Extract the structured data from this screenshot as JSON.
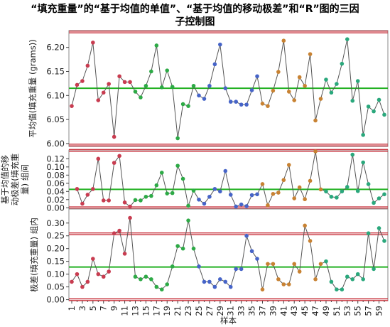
{
  "title_line1": "“填充重量”的“基于均值的单值”、“基于均值的移动极差”和“R”图的三因",
  "title_line2": "子控制图",
  "colors": {
    "center_line": "#22b122",
    "limit_line": "#c8323c",
    "connector": "#555555"
  },
  "series_colors": [
    "#c83c50",
    "#2daa46",
    "#4664c8",
    "#c88232",
    "#2aa87c"
  ],
  "chart_data": [
    {
      "type": "line",
      "name": "mean-panel",
      "ylabel": "平均值(填充重量 (grams))",
      "ylim": [
        5.994,
        6.235
      ],
      "yticks": [
        6.0,
        6.05,
        6.1,
        6.15,
        6.2
      ],
      "ytick_labels": [
        "6.00",
        "6.05",
        "6.10",
        "6.15",
        "6.20"
      ],
      "center_line": 6.115,
      "upper_limit": 6.232,
      "lower_limit": 5.997,
      "grid": false,
      "values": [
        6.078,
        6.122,
        6.13,
        6.162,
        6.21,
        6.09,
        6.106,
        6.124,
        6.014,
        6.14,
        6.128,
        6.128,
        6.108,
        6.096,
        6.12,
        6.15,
        6.204,
        6.117,
        6.152,
        6.118,
        6.011,
        6.082,
        6.078,
        6.12,
        6.1,
        6.093,
        6.12,
        6.165,
        6.206,
        6.115,
        6.087,
        6.087,
        6.081,
        6.081,
        6.111,
        6.14,
        6.083,
        6.078,
        6.11,
        6.149,
        6.214,
        6.108,
        6.09,
        6.138,
        6.12,
        6.186,
        6.048,
        6.093,
        6.133,
        6.106,
        6.124,
        6.166,
        6.217,
        6.089,
        6.13,
        6.018,
        6.077,
        6.067,
        6.091,
        6.06
      ]
    },
    {
      "type": "line",
      "name": "moving-range-panel",
      "ylabel": "基于均值的移动极差(填充重量) 组间",
      "ylim": [
        -0.003,
        0.1415
      ],
      "yticks": [
        0.0,
        0.02,
        0.04,
        0.06,
        0.08,
        0.1,
        0.12
      ],
      "ytick_labels": [
        "0.00",
        "0.02",
        "0.04",
        "0.06",
        "0.08",
        "0.10",
        "0.12"
      ],
      "center_line": 0.045,
      "upper_limit": 0.1405,
      "lower_limit": 0.0,
      "grid": false,
      "values": [
        null,
        0.046,
        0.01,
        0.032,
        0.046,
        0.12,
        0.018,
        0.018,
        0.11,
        0.127,
        0.013,
        0.003,
        0.019,
        0.018,
        0.027,
        0.029,
        0.055,
        0.086,
        0.035,
        0.036,
        0.103,
        0.071,
        0.005,
        0.042,
        0.02,
        0.01,
        0.027,
        0.046,
        0.04,
        0.09,
        0.032,
        0.003,
        0.008,
        0.004,
        0.031,
        0.033,
        0.058,
        0.006,
        0.034,
        0.037,
        0.068,
        0.105,
        0.023,
        0.05,
        0.021,
        0.066,
        0.138,
        0.045,
        0.04,
        0.027,
        0.025,
        0.04,
        0.051,
        0.13,
        0.041,
        0.111,
        0.058,
        0.012,
        0.023,
        0.033
      ]
    },
    {
      "type": "line",
      "name": "range-panel",
      "ylabel": "极差(填充重量) 组内",
      "ylim": [
        -0.004,
        0.355
      ],
      "yticks": [
        0.0,
        0.05,
        0.1,
        0.15,
        0.2,
        0.25,
        0.3
      ],
      "ytick_labels": [
        "0.00",
        "0.05",
        "0.10",
        "0.15",
        "0.20",
        "0.25",
        "0.30"
      ],
      "center_line": 0.128,
      "upper_limit": 0.258,
      "lower_limit": 0.0,
      "grid": false,
      "values": [
        0.07,
        0.1,
        0.05,
        0.07,
        0.16,
        0.1,
        0.09,
        0.11,
        0.26,
        0.27,
        0.18,
        0.32,
        0.09,
        0.08,
        0.09,
        0.08,
        0.05,
        0.04,
        0.06,
        0.13,
        0.21,
        0.2,
        0.31,
        0.2,
        0.13,
        0.07,
        0.07,
        0.05,
        0.08,
        0.07,
        0.05,
        0.12,
        0.12,
        0.25,
        0.19,
        0.16,
        0.04,
        0.14,
        0.14,
        0.08,
        0.06,
        0.06,
        0.14,
        0.11,
        0.29,
        0.23,
        0.08,
        0.14,
        0.15,
        0.07,
        0.04,
        0.04,
        0.09,
        0.08,
        0.1,
        0.08,
        0.26,
        0.12,
        0.28,
        0.23
      ]
    }
  ],
  "x_axis": {
    "label": "样本",
    "tick_labels": [
      "1",
      "3",
      "5",
      "7",
      "9",
      "11",
      "13",
      "15",
      "17",
      "19",
      "21",
      "23",
      "25",
      "27",
      "29",
      "31",
      "33",
      "35",
      "37",
      "39",
      "41",
      "43",
      "45",
      "47",
      "49",
      "51",
      "53",
      "55",
      "57",
      "59"
    ]
  },
  "group_label": "基于均值的移动极差(填充重量) 组间",
  "group_label_lines": [
    "基于均值的移",
    "动极差(填充重",
    "量) 组间"
  ],
  "point_groups": [
    0,
    0,
    0,
    0,
    0,
    0,
    0,
    0,
    0,
    0,
    0,
    0,
    1,
    1,
    1,
    1,
    1,
    1,
    1,
    1,
    1,
    1,
    1,
    1,
    2,
    2,
    2,
    2,
    2,
    2,
    2,
    2,
    2,
    2,
    2,
    2,
    3,
    3,
    3,
    3,
    3,
    3,
    3,
    3,
    3,
    3,
    3,
    3,
    4,
    4,
    4,
    4,
    4,
    4,
    4,
    4,
    4,
    4,
    4,
    4
  ]
}
